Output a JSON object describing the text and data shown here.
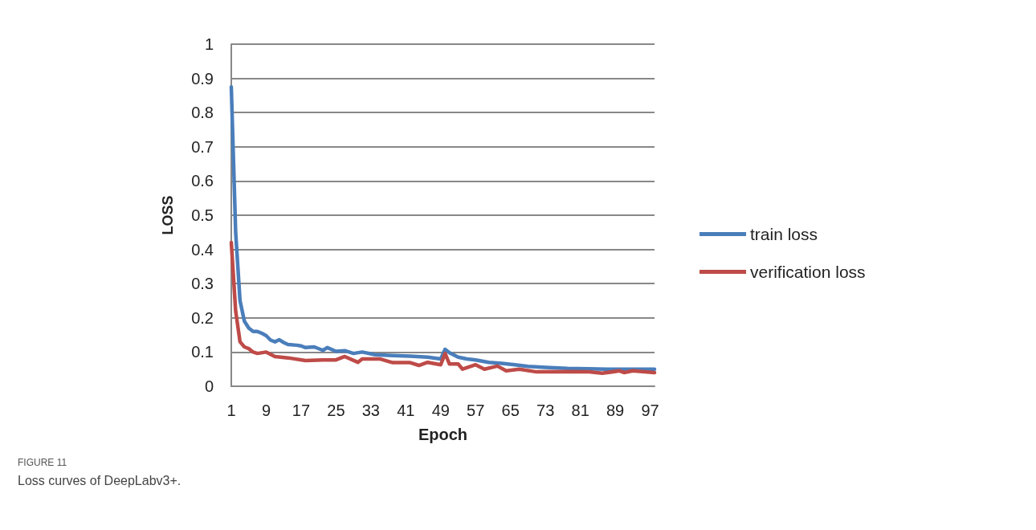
{
  "chart_data": {
    "type": "line",
    "xlabel": "Epoch",
    "ylabel": "LOSS",
    "xlim": [
      1,
      98
    ],
    "xticks": [
      1,
      9,
      17,
      25,
      33,
      41,
      49,
      57,
      65,
      73,
      81,
      89,
      97
    ],
    "ylim": [
      0,
      1
    ],
    "yticks": [
      0,
      0.1,
      0.2,
      0.3,
      0.4,
      0.5,
      0.6,
      0.7,
      0.8,
      0.9,
      1
    ],
    "grid": "y",
    "legend": "right",
    "marker": "none",
    "line_style": "solid",
    "annotations": [
      "FIGURE 11",
      "Loss curves of DeepLabv3+."
    ],
    "series": [
      {
        "name": "train loss",
        "color": "#4a7ebb",
        "x": [
          1,
          2,
          3,
          4,
          5,
          6,
          7,
          8,
          9,
          10,
          11,
          12,
          13,
          14,
          16,
          17,
          18,
          20,
          22,
          23,
          25,
          27,
          29,
          31,
          34,
          38,
          42,
          46,
          49,
          50,
          51,
          53,
          55,
          57,
          60,
          63,
          66,
          69,
          73,
          78,
          83,
          87,
          92,
          98
        ],
        "values": [
          0.875,
          0.45,
          0.25,
          0.19,
          0.17,
          0.16,
          0.16,
          0.155,
          0.148,
          0.135,
          0.13,
          0.136,
          0.128,
          0.122,
          0.12,
          0.118,
          0.113,
          0.115,
          0.105,
          0.113,
          0.102,
          0.104,
          0.096,
          0.1,
          0.092,
          0.09,
          0.088,
          0.085,
          0.08,
          0.108,
          0.098,
          0.085,
          0.08,
          0.077,
          0.07,
          0.067,
          0.063,
          0.058,
          0.055,
          0.052,
          0.051,
          0.05,
          0.05,
          0.05
        ]
      },
      {
        "name": "verification loss",
        "color": "#be4b48",
        "x": [
          1,
          2,
          3,
          4,
          5,
          6,
          7,
          9,
          11,
          14,
          18,
          22,
          25,
          27,
          30,
          31,
          35,
          38,
          42,
          44,
          46,
          49,
          50,
          51,
          53,
          54,
          57,
          59,
          62,
          64,
          67,
          71,
          78,
          83,
          86,
          90,
          91,
          93,
          98
        ],
        "values": [
          0.42,
          0.22,
          0.13,
          0.115,
          0.11,
          0.1,
          0.096,
          0.1,
          0.087,
          0.083,
          0.075,
          0.077,
          0.077,
          0.087,
          0.07,
          0.08,
          0.08,
          0.069,
          0.069,
          0.061,
          0.07,
          0.063,
          0.096,
          0.065,
          0.065,
          0.05,
          0.063,
          0.05,
          0.059,
          0.045,
          0.05,
          0.042,
          0.043,
          0.042,
          0.038,
          0.045,
          0.04,
          0.045,
          0.04
        ]
      }
    ]
  }
}
